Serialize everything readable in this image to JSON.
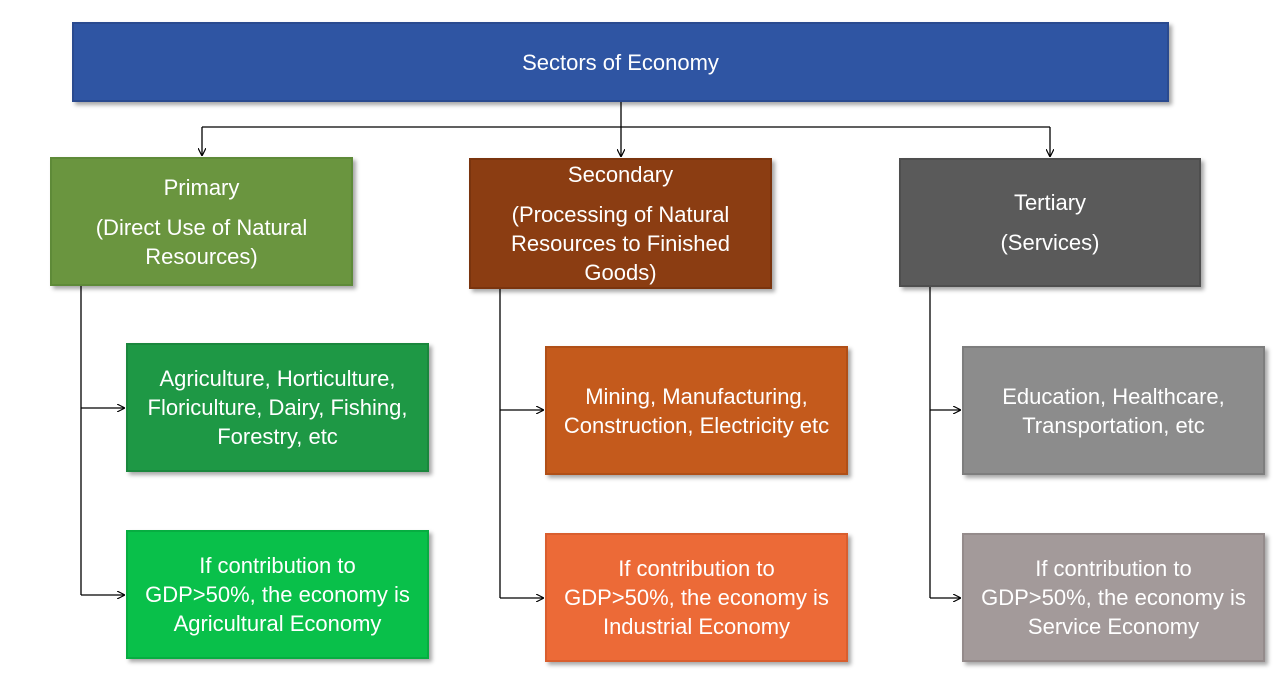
{
  "title": "Sectors of Economy",
  "sectors": [
    {
      "name": "Primary",
      "description": [
        "(Direct Use of Natural",
        "Resources)"
      ],
      "examples": [
        "Agriculture, Horticulture,",
        "Floriculture, Dairy, Fishing,",
        "Forestry, etc"
      ],
      "economy": [
        "If contribution to",
        "GDP>50%, the economy is",
        "Agricultural Economy"
      ]
    },
    {
      "name": "Secondary",
      "description": [
        "(Processing of Natural",
        "Resources to Finished",
        "Goods)"
      ],
      "examples": [
        "Mining, Manufacturing,",
        "Construction, Electricity etc"
      ],
      "economy": [
        "If contribution to",
        "GDP>50%, the economy is",
        "Industrial Economy"
      ]
    },
    {
      "name": "Tertiary",
      "description": [
        "(Services)"
      ],
      "examples": [
        "Education, Healthcare,",
        "Transportation, etc"
      ],
      "economy": [
        "If contribution to",
        "GDP>50%, the economy is",
        "Service Economy"
      ]
    }
  ],
  "colors": {
    "title": "#2f55a3",
    "primary": "#6a953f",
    "secondary": "#8b3d12",
    "tertiary": "#5a5a5a",
    "connector": "#000000"
  }
}
